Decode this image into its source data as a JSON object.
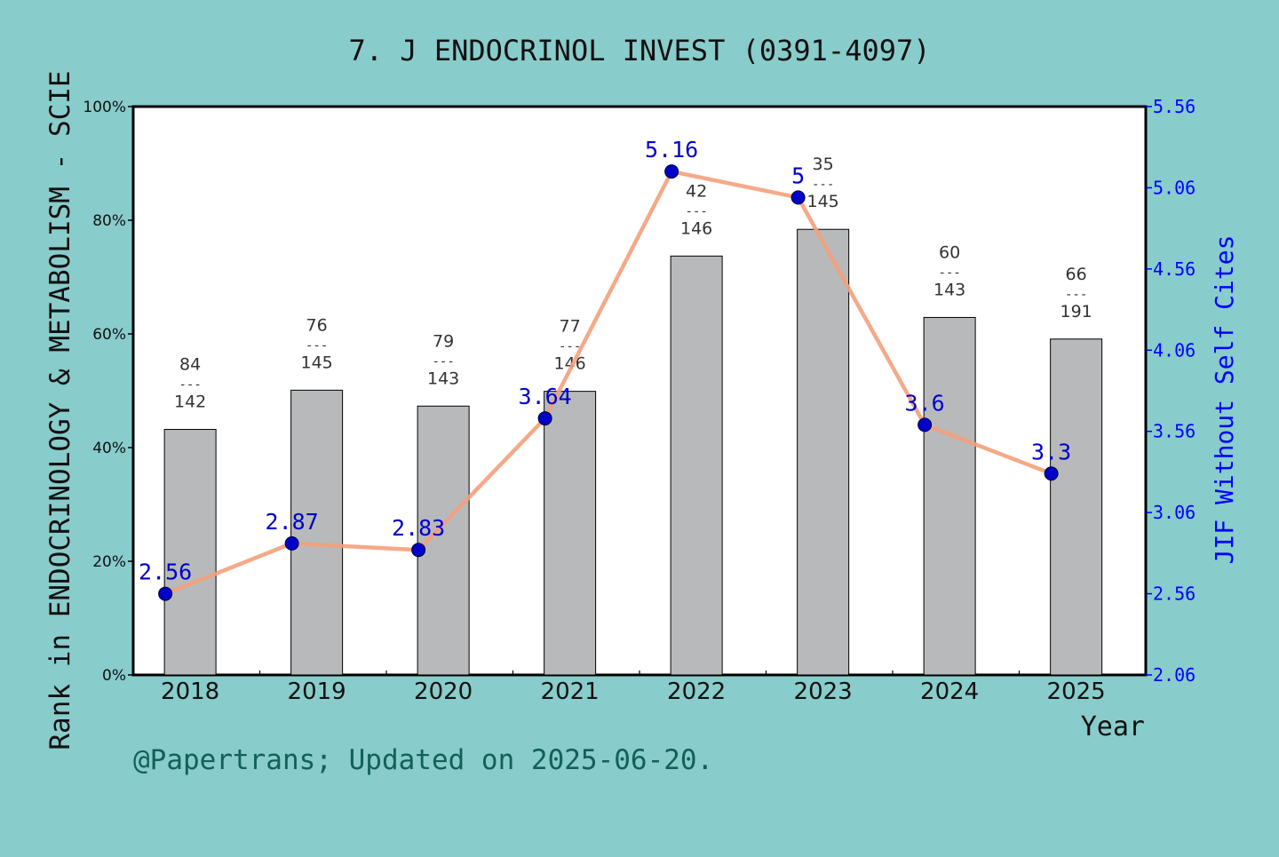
{
  "chart_data": {
    "type": "bar",
    "title": "7. J ENDOCRINOL INVEST (0391-4097)",
    "xlabel": "Year",
    "ylabel": "Rank in ENDOCRINOLOGY & METABOLISM - SCIE",
    "y2label": "JIF Without Self Cites",
    "footer": "@Papertrans; Updated on 2025-06-20.",
    "categories": [
      "2018",
      "2019",
      "2020",
      "2021",
      "2022",
      "2023",
      "2024",
      "2025"
    ],
    "ylim": [
      0,
      100
    ],
    "y_ticks": [
      "0%",
      "20%",
      "40%",
      "60%",
      "80%",
      "100%"
    ],
    "y2lim": [
      2.06,
      5.56
    ],
    "y2_ticks": [
      "2.06",
      "2.56",
      "3.06",
      "3.56",
      "4.06",
      "4.56",
      "5.06",
      "5.56"
    ],
    "series": [
      {
        "type": "bar",
        "values": [
          43.2,
          50.1,
          47.3,
          49.9,
          73.7,
          78.4,
          62.9,
          59.1
        ],
        "rank_numerators": [
          "84",
          "76",
          "79",
          "77",
          "42",
          "35",
          "60",
          "66"
        ],
        "rank_denominators": [
          "142",
          "145",
          "143",
          "146",
          "146",
          "145",
          "143",
          "191"
        ],
        "rank_separator": "---"
      },
      {
        "type": "line",
        "values": [
          2.56,
          2.87,
          2.83,
          3.64,
          5.16,
          5,
          3.6,
          3.3
        ],
        "labels": [
          "2.56",
          "2.87",
          "2.83",
          "3.64",
          "5.16",
          "5",
          "3.6",
          "3.3"
        ]
      }
    ],
    "colors": {
      "background": "#88cccb",
      "plot_background": "#ffffff",
      "bar_fill": "#b8b9bb",
      "line": "#f4a07b",
      "marker": "#0000c8",
      "right_axis": "#0000ff",
      "jif_label": "#0000cc",
      "footer": "#126058"
    },
    "grid": false
  }
}
